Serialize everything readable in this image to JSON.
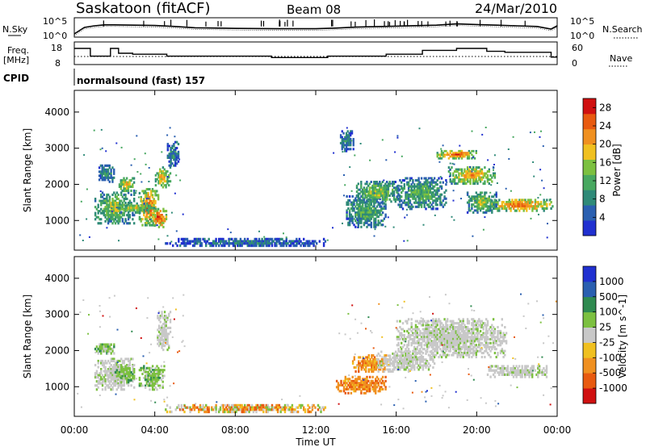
{
  "header": {
    "station": "Saskatoon (fitACF)",
    "beam": "Beam 08",
    "date": "24/Mar/2010"
  },
  "side_labels": {
    "nsky": "N.Sky",
    "freq": "Freq.",
    "freq_unit": "[MHz]",
    "cpid": "CPID",
    "nsearch": "N.Search",
    "nave": "Nave"
  },
  "cpid_text": "normalsound (fast) 157",
  "colors": {
    "power": [
      "#2030d0",
      "#2a5fb0",
      "#2f8a78",
      "#48a860",
      "#7cc040",
      "#f0c020",
      "#f09020",
      "#e85a10",
      "#d01010"
    ],
    "velocity": [
      "#d01010",
      "#e85a10",
      "#f09020",
      "#f0c020",
      "#c8c8c8",
      "#7cc040",
      "#2f8a50",
      "#2a5fb0",
      "#2030d0"
    ],
    "gray": "#c8c8c8"
  },
  "chart_data": [
    {
      "type": "line",
      "name": "noise-panel",
      "left_label": "N.Sky",
      "right_label": "N.Search",
      "left_ticks": [
        "10^5",
        "10^0"
      ],
      "right_ticks": [
        "10^5",
        "10^0"
      ],
      "x": [
        0,
        0.5,
        1,
        1.5,
        2,
        3,
        4,
        5,
        6,
        8,
        10,
        12,
        13,
        14,
        16,
        18,
        19,
        20,
        21,
        22,
        23,
        23.7,
        24
      ],
      "y_log": [
        0.5,
        2.5,
        3.0,
        3.3,
        3.3,
        3.2,
        3.1,
        2.8,
        2.4,
        2.2,
        2.1,
        2.1,
        2.3,
        2.6,
        2.9,
        3.2,
        3.6,
        3.4,
        3.2,
        3.0,
        2.8,
        2.0,
        3.0
      ]
    },
    {
      "type": "line",
      "name": "freq-panel",
      "left_ticks": [
        "18",
        "8"
      ],
      "right_ticks": [
        "60",
        "0"
      ],
      "ylim_left": [
        8,
        18
      ],
      "ylim_right": [
        0,
        60
      ],
      "x": [
        0,
        0.8,
        0.8,
        1.8,
        1.8,
        2.2,
        2.2,
        2.9,
        2.9,
        4.6,
        4.6,
        9.8,
        9.8,
        12.6,
        12.6,
        15.5,
        15.5,
        17.3,
        17.3,
        19,
        19,
        20.5,
        20.5,
        21.4,
        21.4,
        23.7,
        23.7,
        24
      ],
      "freq_mhz": [
        15.5,
        15.5,
        11.5,
        11.5,
        15.5,
        15.5,
        13,
        13,
        12.5,
        12.5,
        11.5,
        11.5,
        10.8,
        10.8,
        11.5,
        11.5,
        12.5,
        12.5,
        14.5,
        14.5,
        15.5,
        15.5,
        14,
        14,
        13.5,
        13.5,
        11,
        11
      ],
      "nave": 30
    },
    {
      "type": "heatmap",
      "name": "power-panel",
      "xlabel": "Time UT",
      "ylabel": "Slant Range [km]",
      "x_ticks": [
        "00:00",
        "04:00",
        "08:00",
        "12:00",
        "16:00",
        "20:00",
        "00:00"
      ],
      "xlim_hours": [
        0,
        24
      ],
      "y_ticks": [
        1000,
        2000,
        3000,
        4000
      ],
      "ylim_km": [
        180,
        4600
      ],
      "colorbar_label": "Power [dB]",
      "colorbar_ticks": [
        4,
        8,
        12,
        16,
        20,
        24,
        28
      ],
      "clim": [
        0,
        30
      ],
      "blobs": [
        {
          "t0": 1.2,
          "t1": 2.0,
          "r0": 2050,
          "r1": 2550,
          "level": 0.35
        },
        {
          "t0": 1.0,
          "t1": 3.0,
          "r0": 900,
          "r1": 1800,
          "level": 0.55
        },
        {
          "t0": 2.2,
          "t1": 3.0,
          "r0": 1800,
          "r1": 2200,
          "level": 0.7
        },
        {
          "t0": 3.2,
          "t1": 4.2,
          "r0": 850,
          "r1": 1900,
          "level": 0.9
        },
        {
          "t0": 3.8,
          "t1": 4.6,
          "r0": 800,
          "r1": 1350,
          "level": 0.95
        },
        {
          "t0": 4.0,
          "t1": 4.8,
          "r0": 1900,
          "r1": 2500,
          "level": 0.7
        },
        {
          "t0": 4.6,
          "t1": 5.2,
          "r0": 2500,
          "r1": 3200,
          "level": 0.3
        },
        {
          "t0": 4.5,
          "t1": 12.5,
          "r0": 280,
          "r1": 520,
          "level": 0.25
        },
        {
          "t0": 13.5,
          "t1": 15.5,
          "r0": 800,
          "r1": 1700,
          "level": 0.45
        },
        {
          "t0": 14.0,
          "t1": 16.2,
          "r0": 1450,
          "r1": 2100,
          "level": 0.55
        },
        {
          "t0": 16.0,
          "t1": 18.5,
          "r0": 1300,
          "r1": 2200,
          "level": 0.45
        },
        {
          "t0": 18.0,
          "t1": 20.0,
          "r0": 2700,
          "r1": 2950,
          "level": 0.9
        },
        {
          "t0": 18.5,
          "t1": 21.0,
          "r0": 2000,
          "r1": 2500,
          "level": 0.75
        },
        {
          "t0": 20.5,
          "t1": 23.8,
          "r0": 1250,
          "r1": 1600,
          "level": 0.85
        },
        {
          "t0": 19.5,
          "t1": 21.0,
          "r0": 1200,
          "r1": 1800,
          "level": 0.55
        },
        {
          "t0": 13.2,
          "t1": 13.9,
          "r0": 2900,
          "r1": 3500,
          "level": 0.3
        },
        {
          "t0": 2.0,
          "t1": 4.0,
          "r0": 1200,
          "r1": 1500,
          "level": 0.6
        }
      ]
    },
    {
      "type": "heatmap",
      "name": "velocity-panel",
      "xlabel": "Time UT",
      "ylabel": "Slant Range [km]",
      "x_ticks": [
        "00:00",
        "04:00",
        "08:00",
        "12:00",
        "16:00",
        "20:00",
        "00:00"
      ],
      "xlim_hours": [
        0,
        24
      ],
      "y_ticks": [
        1000,
        2000,
        3000,
        4000
      ],
      "ylim_km": [
        180,
        4600
      ],
      "colorbar_label": "Velocity [m s^-1]",
      "colorbar_ticks": [
        "1000",
        "500",
        "100",
        "25",
        "-25",
        "-100",
        "-500",
        "-1000"
      ],
      "blobs": [
        {
          "t0": 1.0,
          "t1": 3.0,
          "r0": 900,
          "r1": 1800,
          "kind": "gray"
        },
        {
          "t0": 2.0,
          "t1": 3.0,
          "r0": 1100,
          "r1": 1600,
          "kind": "green"
        },
        {
          "t0": 3.2,
          "t1": 4.5,
          "r0": 900,
          "r1": 1600,
          "kind": "green"
        },
        {
          "t0": 1.0,
          "t1": 2.0,
          "r0": 1900,
          "r1": 2200,
          "kind": "green"
        },
        {
          "t0": 4.5,
          "t1": 12.5,
          "r0": 280,
          "r1": 520,
          "kind": "lowmix"
        },
        {
          "t0": 13.0,
          "t1": 15.5,
          "r0": 800,
          "r1": 1300,
          "kind": "orange"
        },
        {
          "t0": 13.8,
          "t1": 15.6,
          "r0": 1400,
          "r1": 1900,
          "kind": "orange"
        },
        {
          "t0": 15.0,
          "t1": 18.0,
          "r0": 1400,
          "r1": 2000,
          "kind": "gray"
        },
        {
          "t0": 16.0,
          "t1": 21.5,
          "r0": 1800,
          "r1": 2900,
          "kind": "gray"
        },
        {
          "t0": 20.5,
          "t1": 23.5,
          "r0": 1250,
          "r1": 1600,
          "kind": "gray"
        },
        {
          "t0": 4.1,
          "t1": 4.8,
          "r0": 2000,
          "r1": 3100,
          "kind": "gray"
        }
      ]
    }
  ]
}
